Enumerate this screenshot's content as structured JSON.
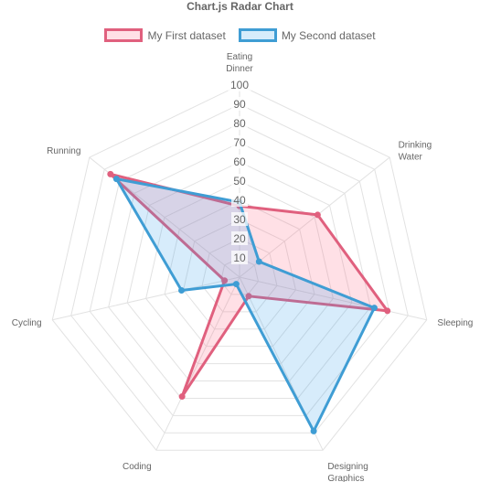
{
  "chart_data": {
    "type": "radar",
    "title": "Chart.js Radar Chart",
    "labels": [
      [
        "Eating",
        "Dinner"
      ],
      [
        "Drinking",
        "Water"
      ],
      [
        "Sleeping"
      ],
      [
        "Designing",
        "Graphics"
      ],
      [
        "Coding"
      ],
      [
        "Cycling"
      ],
      [
        "Running"
      ]
    ],
    "series": [
      {
        "name": "My First dataset",
        "values": [
          37,
          52,
          79,
          11,
          69,
          8,
          86
        ],
        "border_color": "#e0607e",
        "fill_color": "rgba(255,99,132,0.2)"
      },
      {
        "name": "My Second dataset",
        "values": [
          39,
          13,
          72,
          89,
          4,
          31,
          82
        ],
        "border_color": "#3f9dd4",
        "fill_color": "rgba(54,162,235,0.2)"
      }
    ],
    "r_ticks": [
      "10",
      "20",
      "30",
      "40",
      "50",
      "60",
      "70",
      "80",
      "90",
      "100"
    ],
    "r_range": [
      0,
      100
    ],
    "grid": true,
    "legend_position": "top"
  }
}
